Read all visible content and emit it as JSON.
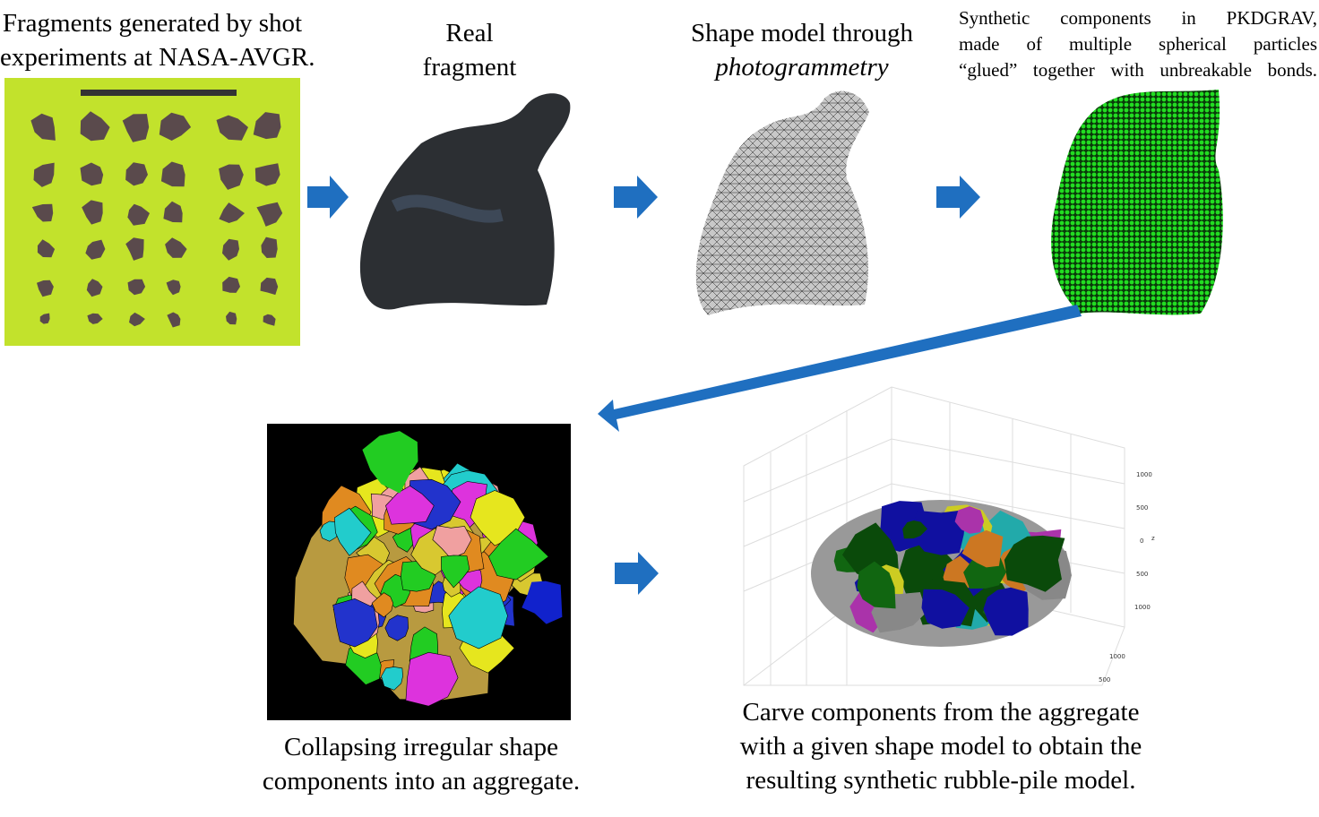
{
  "panels": [
    {
      "caption": [
        "Fragments generated by shot",
        "experiments at NASA-AVGR."
      ]
    },
    {
      "caption": [
        "Real",
        "fragment"
      ]
    },
    {
      "caption": [
        "Shape model through"
      ],
      "caption_italic": "photogrammetry"
    },
    {
      "caption": [
        "Synthetic components in PKDGRAV,",
        "made of multiple spherical particles",
        "“glued” together with unbreakable bonds."
      ]
    },
    {
      "caption": [
        "Collapsing irregular shape",
        "components into an aggregate."
      ]
    },
    {
      "caption": [
        "Carve components from the aggregate",
        "with a given shape model to obtain the",
        "resulting synthetic rubble-pile model."
      ],
      "axis_labels": {
        "z_ticks": [
          "1000",
          "500",
          "0",
          "500",
          "1000"
        ],
        "z_label": "z",
        "y_ticks": [
          "1000",
          "500"
        ]
      }
    }
  ]
}
